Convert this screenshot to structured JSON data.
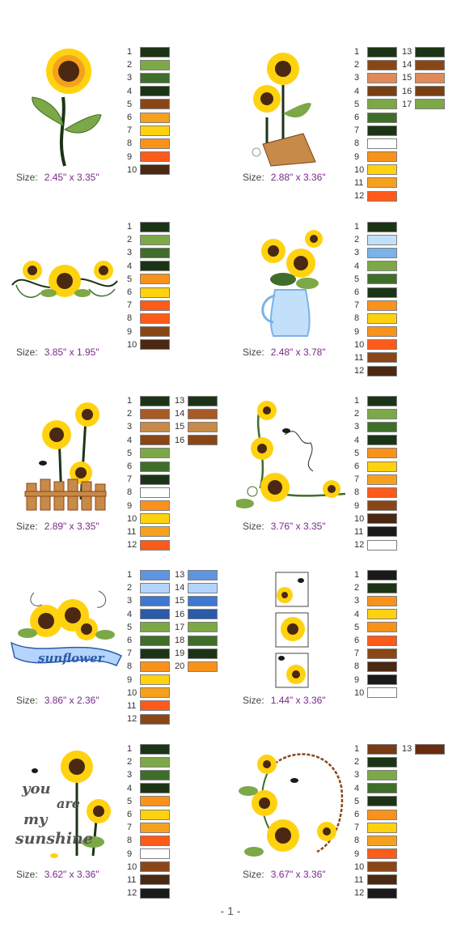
{
  "designs": [
    {
      "size_label": "Size:",
      "size": "2.45\" x 3.35\"",
      "colors": [
        "#1b3416",
        "#7ca847",
        "#3e6e2a",
        "#1b3416",
        "#8a4616",
        "#f5a11e",
        "#ffd20f",
        "#f9921b",
        "#fe5a1a",
        "#4b2812"
      ]
    },
    {
      "size_label": "Size:",
      "size": "2.88\" x 3.36\"",
      "colors": [
        "#1b3416",
        "#8a4616",
        "#e08a57",
        "#7a4014",
        "#7ca847",
        "#3e6e2a",
        "#1b3416",
        "#ffffff",
        "#f9921b",
        "#ffd20f",
        "#f5a11e",
        "#fe5a1a",
        "#1b3416",
        "#8a4616",
        "#e08a57",
        "#7a4014",
        "#7ca847"
      ]
    },
    {
      "size_label": "Size:",
      "size": "3.85\" x 1.95\"",
      "colors": [
        "#1b3416",
        "#7ca847",
        "#3e6e2a",
        "#1b3416",
        "#f9921b",
        "#ffd20f",
        "#fe5a1a",
        "#fe5a1a",
        "#8a4616",
        "#4b2812"
      ]
    },
    {
      "size_label": "Size:",
      "size": "2.48\" x 3.78\"",
      "colors": [
        "#1b3416",
        "#c3e0fb",
        "#7ab2ea",
        "#7ca847",
        "#3e6e2a",
        "#1b3416",
        "#f9921b",
        "#ffd20f",
        "#f9921b",
        "#fe5a1a",
        "#8a4616",
        "#4b2812"
      ]
    },
    {
      "size_label": "Size:",
      "size": "2.89\" x 3.35\"",
      "colors": [
        "#1b3416",
        "#a85a28",
        "#c88a48",
        "#8a4616",
        "#7ca847",
        "#3e6e2a",
        "#1b3416",
        "#ffffff",
        "#f9921b",
        "#ffd20f",
        "#f5a11e",
        "#fe5a1a",
        "#1b3416",
        "#a85a28",
        "#c88a48",
        "#8a4616"
      ]
    },
    {
      "size_label": "Size:",
      "size": "3.76\" x 3.35\"",
      "colors": [
        "#1b3416",
        "#7ca847",
        "#3e6e2a",
        "#1b3416",
        "#f9921b",
        "#ffd20f",
        "#f5a11e",
        "#fe5a1a",
        "#8a4616",
        "#4b2812",
        "#1a1a1a",
        "#ffffff"
      ]
    },
    {
      "size_label": "Size:",
      "size": "3.86\" x 2.36\"",
      "colors": [
        "#5f94e0",
        "#b4d4fb",
        "#3e78d2",
        "#2c5aa8",
        "#7ca847",
        "#3e6e2a",
        "#1b3416",
        "#f9921b",
        "#ffd20f",
        "#f5a11e",
        "#fe5a1a",
        "#8a4616",
        "#5f94e0",
        "#b4d4fb",
        "#3e78d2",
        "#2c5aa8",
        "#7ca847",
        "#3e6e2a",
        "#1b3416",
        "#f9921b"
      ]
    },
    {
      "size_label": "Size:",
      "size": "1.44\" x 3.36\"",
      "colors": [
        "#1a1a1a",
        "#1b3416",
        "#f9921b",
        "#ffd20f",
        "#f9921b",
        "#fe5a1a",
        "#8a4616",
        "#4b2812",
        "#1a1a1a",
        "#ffffff"
      ]
    },
    {
      "size_label": "Size:",
      "size": "3.62\" x 3.36\"",
      "colors": [
        "#1b3416",
        "#7ca847",
        "#3e6e2a",
        "#1b3416",
        "#f9921b",
        "#ffd20f",
        "#f5a11e",
        "#fe5a1a",
        "#ffffff",
        "#8a4616",
        "#4b2812",
        "#1a1a1a"
      ],
      "art_text": [
        "you",
        "are",
        "my",
        "sunshine"
      ]
    },
    {
      "size_label": "Size:",
      "size": "3.67\" x 3.36\"",
      "colors": [
        "#7a3a14",
        "#1b3416",
        "#7ca847",
        "#3e6e2a",
        "#1b3416",
        "#f9921b",
        "#ffd20f",
        "#f5a11e",
        "#fe5a1a",
        "#8a4616",
        "#4b2812",
        "#1a1a1a",
        "#6a2c0e"
      ]
    }
  ],
  "banner_text": "sunflower",
  "page_number": "- 1 -"
}
